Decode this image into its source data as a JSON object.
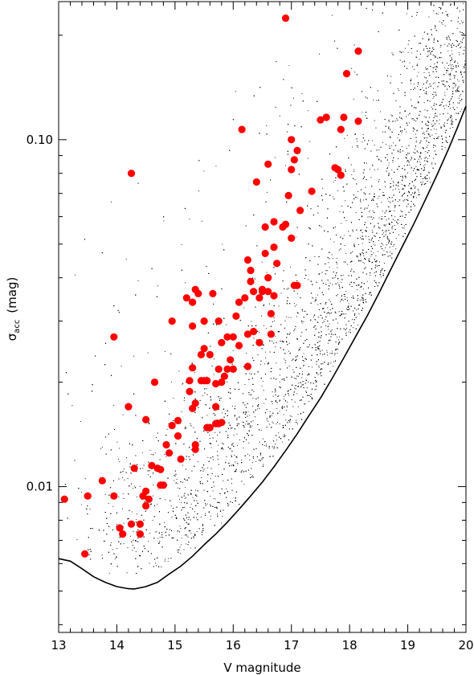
{
  "chart_data": {
    "type": "scatter",
    "xlabel": "V magnitude",
    "ylabel_main": "σ",
    "ylabel_sub": "acc",
    "ylabel_unit": "(mag)",
    "xlim": [
      13,
      20
    ],
    "ylim": [
      0.0038,
      0.25
    ],
    "y_scale": "log",
    "x_ticks": [
      13,
      14,
      15,
      16,
      17,
      18,
      19,
      20
    ],
    "x_tick_labels": [
      "13",
      "14",
      "15",
      "16",
      "17",
      "18",
      "19",
      "20"
    ],
    "y_major_ticks": [
      0.01,
      0.1
    ],
    "y_tick_labels": [
      "0.01",
      "0.10"
    ],
    "grid": false,
    "colors": {
      "highlight": "#ff0000",
      "background_points": "#000000",
      "curve": "#000000"
    },
    "series": [
      {
        "style": "small black dots",
        "description_points_estimated": true,
        "density_regions": [
          {
            "x_range": [
              13.0,
              20.0
            ],
            "note": "dense field-star cloud above the lower-envelope curve"
          }
        ]
      },
      {
        "style": "red filled circles",
        "points": [
          [
            13.1,
            0.0092
          ],
          [
            13.45,
            0.0064
          ],
          [
            13.5,
            0.0094
          ],
          [
            13.75,
            0.0104
          ],
          [
            13.95,
            0.0094
          ],
          [
            13.95,
            0.027
          ],
          [
            14.05,
            0.0076
          ],
          [
            14.1,
            0.0073
          ],
          [
            14.2,
            0.017
          ],
          [
            14.25,
            0.0078
          ],
          [
            14.25,
            0.08
          ],
          [
            14.3,
            0.0113
          ],
          [
            14.4,
            0.0073
          ],
          [
            14.4,
            0.0078
          ],
          [
            14.45,
            0.0094
          ],
          [
            14.5,
            0.0088
          ],
          [
            14.5,
            0.0097
          ],
          [
            14.5,
            0.0156
          ],
          [
            14.55,
            0.0092
          ],
          [
            14.6,
            0.0115
          ],
          [
            14.65,
            0.02
          ],
          [
            14.7,
            0.0113
          ],
          [
            14.75,
            0.0112
          ],
          [
            14.75,
            0.0101
          ],
          [
            14.8,
            0.0101
          ],
          [
            14.85,
            0.0132
          ],
          [
            14.9,
            0.0125
          ],
          [
            14.95,
            0.015
          ],
          [
            14.95,
            0.03
          ],
          [
            15.05,
            0.0155
          ],
          [
            15.05,
            0.014
          ],
          [
            15.1,
            0.012
          ],
          [
            15.2,
            0.035
          ],
          [
            15.25,
            0.0202
          ],
          [
            15.25,
            0.0188
          ],
          [
            15.3,
            0.0168
          ],
          [
            15.3,
            0.022
          ],
          [
            15.3,
            0.029
          ],
          [
            15.3,
            0.034
          ],
          [
            15.35,
            0.0128
          ],
          [
            15.35,
            0.0132
          ],
          [
            15.35,
            0.0174
          ],
          [
            15.35,
            0.037
          ],
          [
            15.4,
            0.036
          ],
          [
            15.45,
            0.0202
          ],
          [
            15.45,
            0.024
          ],
          [
            15.5,
            0.0202
          ],
          [
            15.5,
            0.025
          ],
          [
            15.5,
            0.03
          ],
          [
            15.55,
            0.0148
          ],
          [
            15.55,
            0.0202
          ],
          [
            15.6,
            0.0148
          ],
          [
            15.6,
            0.024
          ],
          [
            15.65,
            0.036
          ],
          [
            15.7,
            0.0152
          ],
          [
            15.7,
            0.017
          ],
          [
            15.7,
            0.0198
          ],
          [
            15.75,
            0.0152
          ],
          [
            15.75,
            0.0218
          ],
          [
            15.75,
            0.03
          ],
          [
            15.8,
            0.0153
          ],
          [
            15.8,
            0.02
          ],
          [
            15.8,
            0.026
          ],
          [
            15.85,
            0.0208
          ],
          [
            15.9,
            0.0218
          ],
          [
            15.9,
            0.027
          ],
          [
            15.95,
            0.0232
          ],
          [
            16.0,
            0.027
          ],
          [
            16.0,
            0.0218
          ],
          [
            16.05,
            0.031
          ],
          [
            16.1,
            0.0255
          ],
          [
            16.1,
            0.034
          ],
          [
            16.15,
            0.107
          ],
          [
            16.2,
            0.035
          ],
          [
            16.25,
            0.0222
          ],
          [
            16.25,
            0.0275
          ],
          [
            16.25,
            0.045
          ],
          [
            16.3,
            0.039
          ],
          [
            16.3,
            0.042
          ],
          [
            16.35,
            0.0365
          ],
          [
            16.35,
            0.028
          ],
          [
            16.4,
            0.0755
          ],
          [
            16.45,
            0.026
          ],
          [
            16.45,
            0.035
          ],
          [
            16.5,
            0.0365
          ],
          [
            16.5,
            0.037
          ],
          [
            16.55,
            0.047
          ],
          [
            16.55,
            0.056
          ],
          [
            16.6,
            0.0365
          ],
          [
            16.6,
            0.04
          ],
          [
            16.6,
            0.085
          ],
          [
            16.65,
            0.0275
          ],
          [
            16.65,
            0.0315
          ],
          [
            16.7,
            0.049
          ],
          [
            16.7,
            0.058
          ],
          [
            16.7,
            0.0355
          ],
          [
            16.75,
            0.044
          ],
          [
            16.85,
            0.056
          ],
          [
            16.9,
            0.057
          ],
          [
            16.9,
            0.224
          ],
          [
            16.95,
            0.069
          ],
          [
            17.0,
            0.052
          ],
          [
            17.0,
            0.082
          ],
          [
            17.0,
            0.1
          ],
          [
            17.05,
            0.038
          ],
          [
            17.05,
            0.0875
          ],
          [
            17.1,
            0.038
          ],
          [
            17.1,
            0.093
          ],
          [
            17.15,
            0.0625
          ],
          [
            17.35,
            0.071
          ],
          [
            17.5,
            0.114
          ],
          [
            17.6,
            0.116
          ],
          [
            17.75,
            0.083
          ],
          [
            17.8,
            0.082
          ],
          [
            17.85,
            0.079
          ],
          [
            17.85,
            0.107
          ],
          [
            17.9,
            0.116
          ],
          [
            17.95,
            0.155
          ],
          [
            18.15,
            0.113
          ],
          [
            18.15,
            0.18
          ]
        ]
      },
      {
        "style": "solid black line",
        "points": [
          [
            13.0,
            0.0062
          ],
          [
            13.2,
            0.0061
          ],
          [
            13.4,
            0.0058
          ],
          [
            13.6,
            0.0055
          ],
          [
            13.8,
            0.0053
          ],
          [
            14.0,
            0.00515
          ],
          [
            14.2,
            0.00508
          ],
          [
            14.3,
            0.00507
          ],
          [
            14.5,
            0.00515
          ],
          [
            14.7,
            0.0053
          ],
          [
            14.9,
            0.0056
          ],
          [
            15.1,
            0.0059
          ],
          [
            15.3,
            0.0063
          ],
          [
            15.5,
            0.0068
          ],
          [
            15.7,
            0.0073
          ],
          [
            15.9,
            0.0079
          ],
          [
            16.1,
            0.0086
          ],
          [
            16.3,
            0.0094
          ],
          [
            16.5,
            0.0103
          ],
          [
            16.7,
            0.0114
          ],
          [
            16.9,
            0.0127
          ],
          [
            17.1,
            0.0142
          ],
          [
            17.3,
            0.016
          ],
          [
            17.5,
            0.018
          ],
          [
            17.7,
            0.0205
          ],
          [
            17.9,
            0.0235
          ],
          [
            18.1,
            0.027
          ],
          [
            18.3,
            0.031
          ],
          [
            18.5,
            0.036
          ],
          [
            18.7,
            0.042
          ],
          [
            18.9,
            0.049
          ],
          [
            19.1,
            0.057
          ],
          [
            19.3,
            0.067
          ],
          [
            19.5,
            0.079
          ],
          [
            19.7,
            0.094
          ],
          [
            19.85,
            0.108
          ],
          [
            20.0,
            0.125
          ]
        ]
      }
    ]
  }
}
